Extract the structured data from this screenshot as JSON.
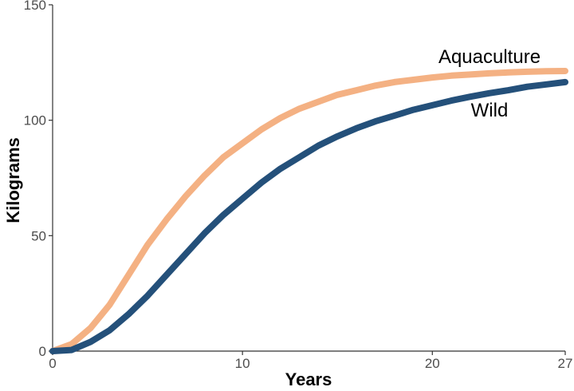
{
  "chart_data": {
    "type": "line",
    "xlabel": "Years",
    "ylabel": "Kilograms",
    "xlim": [
      0,
      27
    ],
    "ylim": [
      0,
      150
    ],
    "x_ticks": [
      0,
      10,
      20,
      27
    ],
    "y_ticks": [
      0,
      50,
      100,
      150
    ],
    "grid": false,
    "legend": "none",
    "series": [
      {
        "name": "Aquaculture",
        "color": "#F4B183",
        "x": [
          0,
          1,
          2,
          3,
          4,
          5,
          6,
          7,
          8,
          9,
          10,
          11,
          12,
          13,
          14,
          15,
          16,
          17,
          18,
          19,
          20,
          21,
          22,
          23,
          24,
          25,
          26,
          27
        ],
        "y": [
          0,
          3,
          10,
          20,
          33,
          46,
          57,
          67,
          76,
          84,
          90,
          96,
          101,
          105,
          108,
          111,
          113,
          115,
          116.5,
          117.5,
          118.5,
          119.3,
          119.8,
          120.3,
          120.7,
          121,
          121.2,
          121.3
        ]
      },
      {
        "name": "Wild",
        "color": "#24507A",
        "x": [
          0,
          1,
          2,
          3,
          4,
          5,
          6,
          7,
          8,
          9,
          10,
          11,
          12,
          13,
          14,
          15,
          16,
          17,
          18,
          19,
          20,
          21,
          22,
          23,
          24,
          25,
          26,
          27
        ],
        "y": [
          0,
          0.5,
          4,
          9,
          16,
          24,
          33,
          42,
          51,
          59,
          66,
          73,
          79,
          84,
          89,
          93,
          96.5,
          99.5,
          102,
          104.5,
          106.5,
          108.5,
          110.2,
          111.7,
          113,
          114.5,
          115.5,
          116.5
        ]
      }
    ]
  }
}
